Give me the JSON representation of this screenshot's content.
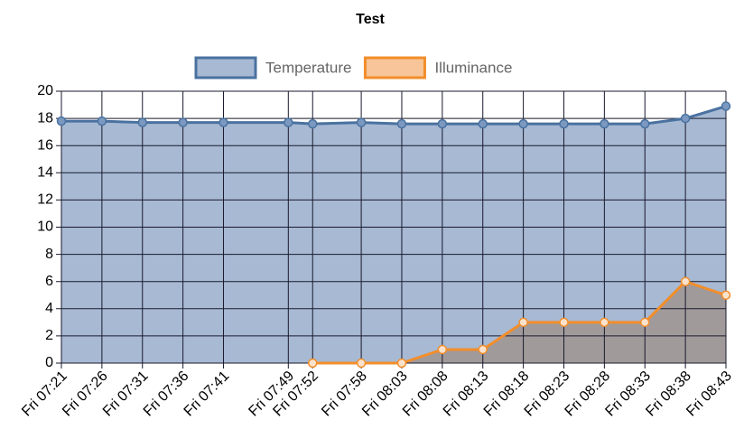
{
  "chart_data": {
    "type": "area",
    "title": "Test",
    "categories": [
      "Fri 07:21",
      "Fri 07:26",
      "Fri 07:31",
      "Fri 07:36",
      "Fri 07:41",
      "Fri 07:49",
      "Fri 07:52",
      "Fri 07:58",
      "Fri 08:03",
      "Fri 08:08",
      "Fri 08:13",
      "Fri 08:18",
      "Fri 08:23",
      "Fri 08:28",
      "Fri 08:33",
      "Fri 08:38",
      "Fri 08:43"
    ],
    "series": [
      {
        "name": "Temperature",
        "color": "#4a72a0",
        "fill": "#a7b9d3",
        "values": [
          17.8,
          17.8,
          17.7,
          17.7,
          17.7,
          17.7,
          17.6,
          17.7,
          17.6,
          17.6,
          17.6,
          17.6,
          17.6,
          17.6,
          17.6,
          18.0,
          18.9
        ]
      },
      {
        "name": "Illuminance",
        "color": "#f28e2b",
        "fill": "#a09a9a",
        "legend_fill": "#f7c599",
        "values": [
          null,
          null,
          null,
          null,
          null,
          null,
          0,
          0,
          0,
          1,
          1,
          3,
          3,
          3,
          3,
          6,
          5
        ]
      }
    ],
    "ylim": [
      0,
      20
    ],
    "yticks": [
      0,
      2,
      4,
      6,
      8,
      10,
      12,
      14,
      16,
      18,
      20
    ],
    "grid": true,
    "legend": "top"
  }
}
